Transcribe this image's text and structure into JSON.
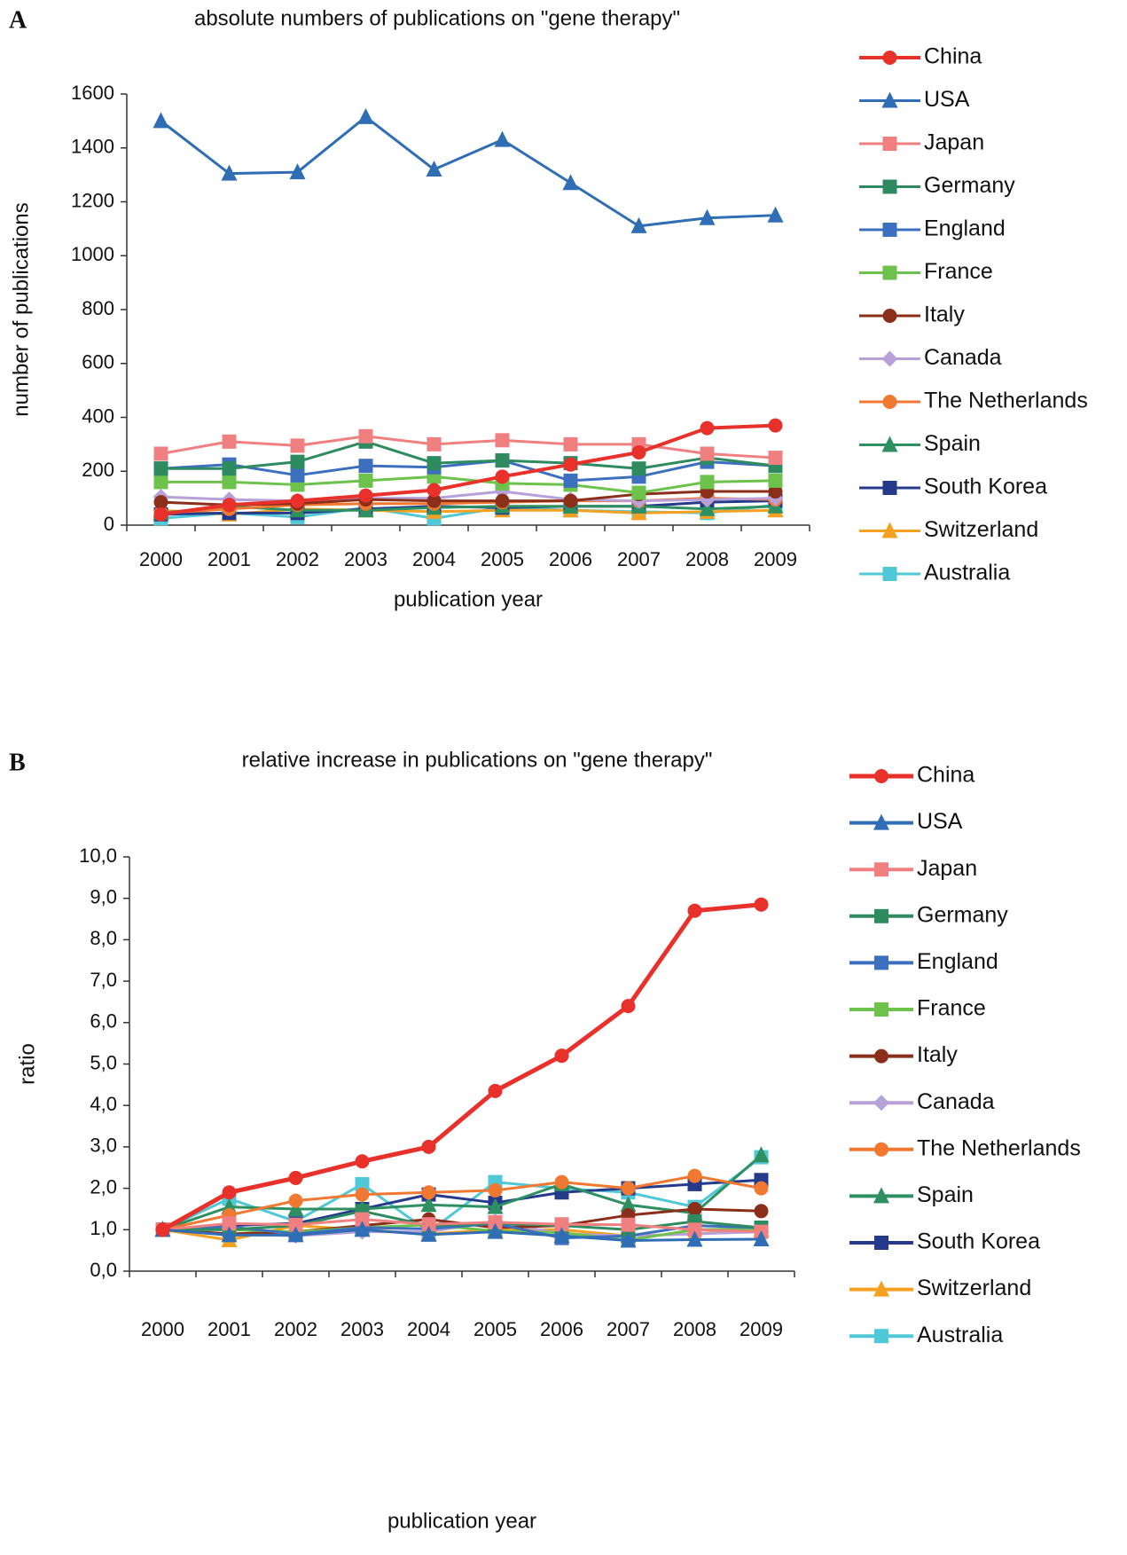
{
  "chart_data": [
    {
      "type": "line",
      "panel_label": "A",
      "title": "absolute numbers of publications on \"gene therapy\"",
      "x_label": "publication year",
      "y_label": "number of publications",
      "categories": [
        "2000",
        "2001",
        "2002",
        "2003",
        "2004",
        "2005",
        "2006",
        "2007",
        "2008",
        "2009"
      ],
      "ylim": [
        0,
        1600
      ],
      "yticks": [
        0,
        200,
        400,
        600,
        800,
        1000,
        1200,
        1400,
        1600
      ],
      "grid": false,
      "legend": "right",
      "series": [
        {
          "name": "China",
          "color": "#e8312a",
          "marker": "circle",
          "linewidth": 4,
          "values": [
            40,
            75,
            90,
            110,
            130,
            180,
            225,
            270,
            360,
            370
          ]
        },
        {
          "name": "USA",
          "color": "#2f6db5",
          "marker": "triangle",
          "linewidth": 3,
          "values": [
            1500,
            1305,
            1310,
            1515,
            1320,
            1430,
            1270,
            1110,
            1140,
            1150
          ]
        },
        {
          "name": "Japan",
          "color": "#f08080",
          "marker": "square",
          "linewidth": 3,
          "values": [
            265,
            310,
            295,
            330,
            300,
            315,
            300,
            300,
            265,
            250
          ]
        },
        {
          "name": "Germany",
          "color": "#2e8b60",
          "marker": "square",
          "linewidth": 3,
          "values": [
            210,
            210,
            235,
            310,
            230,
            240,
            230,
            210,
            250,
            220
          ]
        },
        {
          "name": "England",
          "color": "#3d6fbf",
          "marker": "square",
          "linewidth": 3,
          "values": [
            210,
            225,
            185,
            220,
            215,
            240,
            165,
            180,
            235,
            220
          ]
        },
        {
          "name": "France",
          "color": "#6cc24a",
          "marker": "square",
          "linewidth": 3,
          "values": [
            160,
            160,
            150,
            165,
            180,
            155,
            150,
            120,
            160,
            165
          ]
        },
        {
          "name": "Italy",
          "color": "#8b2e1a",
          "marker": "circle",
          "linewidth": 3,
          "values": [
            85,
            75,
            80,
            95,
            90,
            90,
            90,
            115,
            125,
            125
          ]
        },
        {
          "name": "Canada",
          "color": "#b8a0d8",
          "marker": "diamond",
          "linewidth": 3,
          "values": [
            105,
            95,
            90,
            100,
            100,
            125,
            95,
            90,
            95,
            100
          ]
        },
        {
          "name": "The Netherlands",
          "color": "#f07830",
          "marker": "circle",
          "linewidth": 3,
          "values": [
            45,
            60,
            75,
            80,
            80,
            85,
            90,
            90,
            100,
            95
          ]
        },
        {
          "name": "Spain",
          "color": "#2e9060",
          "marker": "triangle",
          "linewidth": 3,
          "values": [
            45,
            70,
            55,
            55,
            65,
            70,
            70,
            70,
            60,
            70
          ]
        },
        {
          "name": "South Korea",
          "color": "#263a8c",
          "marker": "square",
          "linewidth": 3,
          "values": [
            40,
            45,
            45,
            60,
            70,
            65,
            70,
            70,
            85,
            90
          ]
        },
        {
          "name": "Switzerland",
          "color": "#f5a020",
          "marker": "triangle",
          "linewidth": 3,
          "values": [
            55,
            40,
            60,
            55,
            50,
            55,
            55,
            45,
            50,
            55
          ]
        },
        {
          "name": "Australia",
          "color": "#50c8d8",
          "marker": "square",
          "linewidth": 3,
          "values": [
            25,
            45,
            30,
            65,
            25,
            65,
            55,
            50,
            45,
            75
          ]
        }
      ]
    },
    {
      "type": "line",
      "panel_label": "B",
      "title": "relative increase in publications on \"gene therapy\"",
      "x_label": "publication year",
      "y_label": "ratio",
      "categories": [
        "2000",
        "2001",
        "2002",
        "2003",
        "2004",
        "2005",
        "2006",
        "2007",
        "2008",
        "2009"
      ],
      "ylim": [
        0,
        10
      ],
      "yticks": [
        {
          "value": 0,
          "label": "0,0"
        },
        {
          "value": 1,
          "label": "1,0"
        },
        {
          "value": 2,
          "label": "2,0"
        },
        {
          "value": 3,
          "label": "3,0"
        },
        {
          "value": 4,
          "label": "4,0"
        },
        {
          "value": 5,
          "label": "5,0"
        },
        {
          "value": 6,
          "label": "6,0"
        },
        {
          "value": 7,
          "label": "7,0"
        },
        {
          "value": 8,
          "label": "8,0"
        },
        {
          "value": 9,
          "label": "9,0"
        },
        {
          "value": 10,
          "label": "10,0"
        }
      ],
      "grid": false,
      "legend": "right",
      "series": [
        {
          "name": "China",
          "color": "#e8312a",
          "marker": "circle",
          "linewidth": 5,
          "values": [
            1.0,
            1.9,
            2.25,
            2.65,
            3.0,
            4.35,
            5.2,
            6.4,
            8.7,
            8.85
          ]
        },
        {
          "name": "USA",
          "color": "#2f6db5",
          "marker": "triangle",
          "linewidth": 3,
          "values": [
            1.0,
            0.87,
            0.87,
            1.0,
            0.88,
            0.95,
            0.85,
            0.74,
            0.76,
            0.77
          ]
        },
        {
          "name": "Japan",
          "color": "#f08080",
          "marker": "square",
          "linewidth": 3,
          "values": [
            1.0,
            1.15,
            1.12,
            1.25,
            1.13,
            1.18,
            1.13,
            1.12,
            1.0,
            0.95
          ]
        },
        {
          "name": "Germany",
          "color": "#2e8b60",
          "marker": "square",
          "linewidth": 3,
          "values": [
            1.0,
            1.0,
            1.1,
            1.45,
            1.1,
            1.15,
            1.1,
            1.0,
            1.2,
            1.05
          ]
        },
        {
          "name": "England",
          "color": "#3d6fbf",
          "marker": "square",
          "linewidth": 3,
          "values": [
            1.0,
            1.07,
            0.9,
            1.05,
            1.02,
            1.15,
            0.8,
            0.85,
            1.1,
            1.05
          ]
        },
        {
          "name": "France",
          "color": "#6cc24a",
          "marker": "square",
          "linewidth": 3,
          "values": [
            1.0,
            1.0,
            0.95,
            1.05,
            1.12,
            0.97,
            0.93,
            0.75,
            1.0,
            1.03
          ]
        },
        {
          "name": "Italy",
          "color": "#8b2e1a",
          "marker": "circle",
          "linewidth": 3,
          "values": [
            1.0,
            0.9,
            0.95,
            1.1,
            1.25,
            1.05,
            1.1,
            1.35,
            1.5,
            1.45
          ]
        },
        {
          "name": "Canada",
          "color": "#b8a0d8",
          "marker": "diamond",
          "linewidth": 3,
          "values": [
            1.0,
            0.9,
            0.85,
            0.95,
            0.95,
            1.2,
            0.9,
            0.85,
            0.9,
            0.95
          ]
        },
        {
          "name": "The Netherlands",
          "color": "#f07830",
          "marker": "circle",
          "linewidth": 3,
          "values": [
            1.0,
            1.35,
            1.7,
            1.85,
            1.9,
            1.95,
            2.15,
            2.0,
            2.3,
            2.0
          ]
        },
        {
          "name": "Spain",
          "color": "#2e9060",
          "marker": "triangle",
          "linewidth": 3,
          "values": [
            1.0,
            1.55,
            1.5,
            1.5,
            1.6,
            1.55,
            2.1,
            1.6,
            1.4,
            2.8
          ]
        },
        {
          "name": "South Korea",
          "color": "#263a8c",
          "marker": "square",
          "linewidth": 3,
          "values": [
            1.0,
            1.1,
            1.15,
            1.5,
            1.85,
            1.65,
            1.9,
            2.0,
            2.1,
            2.2
          ]
        },
        {
          "name": "Switzerland",
          "color": "#f5a020",
          "marker": "triangle",
          "linewidth": 3,
          "values": [
            1.0,
            0.75,
            1.1,
            1.0,
            0.9,
            1.0,
            1.0,
            0.85,
            0.9,
            1.0
          ]
        },
        {
          "name": "Australia",
          "color": "#50c8d8",
          "marker": "square",
          "linewidth": 3,
          "values": [
            1.0,
            1.75,
            1.2,
            2.1,
            0.95,
            2.15,
            2.0,
            1.9,
            1.55,
            2.75
          ]
        }
      ]
    }
  ]
}
